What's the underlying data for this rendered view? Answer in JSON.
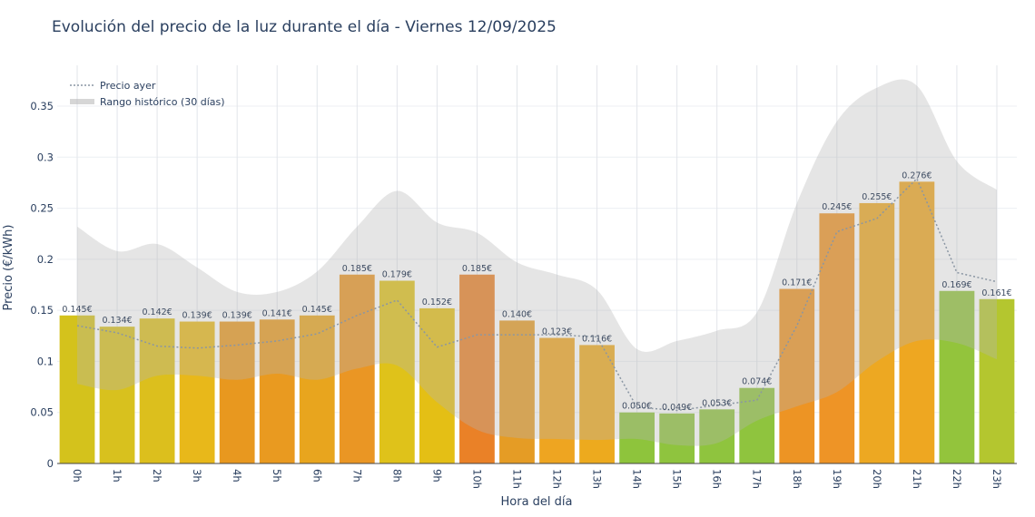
{
  "chart_data": {
    "type": "bar",
    "title": "Evolución del precio de la luz durante el día - Viernes 12/09/2025",
    "xlabel": "Hora del día",
    "ylabel": "Precio (€/kWh)",
    "ylim": [
      0,
      0.39
    ],
    "yticks": [
      0,
      0.05,
      0.1,
      0.15,
      0.2,
      0.25,
      0.3,
      0.35
    ],
    "ytick_labels": [
      "0",
      "0.05",
      "0.1",
      "0.15",
      "0.2",
      "0.25",
      "0.3",
      "0.35"
    ],
    "grid": true,
    "legend_position": "top-left",
    "categories": [
      "0h",
      "1h",
      "2h",
      "3h",
      "4h",
      "5h",
      "6h",
      "7h",
      "8h",
      "9h",
      "10h",
      "11h",
      "12h",
      "13h",
      "14h",
      "15h",
      "16h",
      "17h",
      "18h",
      "19h",
      "20h",
      "21h",
      "22h",
      "23h"
    ],
    "series": [
      {
        "kind": "bar",
        "values": [
          0.145,
          0.134,
          0.142,
          0.139,
          0.139,
          0.141,
          0.145,
          0.185,
          0.179,
          0.152,
          0.185,
          0.14,
          0.123,
          0.116,
          0.05,
          0.049,
          0.053,
          0.074,
          0.171,
          0.245,
          0.255,
          0.276,
          0.169,
          0.161
        ],
        "labels": [
          "0.145€",
          "0.134€",
          "0.142€",
          "0.139€",
          "0.139€",
          "0.141€",
          "0.145€",
          "0.185€",
          "0.179€",
          "0.152€",
          "0.185€",
          "0.140€",
          "0.123€",
          "0.116€",
          "0.050€",
          "0.049€",
          "0.053€",
          "0.074€",
          "0.171€",
          "0.245€",
          "0.255€",
          "0.276€",
          "0.169€",
          "0.161€"
        ],
        "colors": [
          "#d4c21c",
          "#d8c11e",
          "#dcbf1d",
          "#e8b81a",
          "#e8981f",
          "#e99a20",
          "#e8a51e",
          "#ea9624",
          "#dfc21a",
          "#e4bf15",
          "#ea8127",
          "#e59c25",
          "#eea521",
          "#edaa1e",
          "#8ec43c",
          "#8fc43e",
          "#8fc43e",
          "#8fc43e",
          "#ed9424",
          "#ee9426",
          "#eda822",
          "#eea721",
          "#93c43c",
          "#b4c62f"
        ]
      },
      {
        "kind": "line",
        "name": "Precio ayer",
        "style": "dotted",
        "color": "#8a96a3",
        "values": [
          0.135,
          0.128,
          0.115,
          0.113,
          0.116,
          0.12,
          0.127,
          0.145,
          0.16,
          0.114,
          0.126,
          0.126,
          0.126,
          0.124,
          0.055,
          0.052,
          0.057,
          0.062,
          0.135,
          0.227,
          0.24,
          0.279,
          0.187,
          0.178
        ]
      },
      {
        "kind": "band",
        "name": "Rango histórico (30 días)",
        "color": "rgba(180,180,180,0.35)",
        "upper": [
          0.232,
          0.208,
          0.215,
          0.192,
          0.168,
          0.168,
          0.188,
          0.232,
          0.267,
          0.236,
          0.226,
          0.197,
          0.185,
          0.17,
          0.112,
          0.12,
          0.13,
          0.148,
          0.255,
          0.335,
          0.368,
          0.37,
          0.296,
          0.268
        ],
        "lower": [
          0.078,
          0.072,
          0.086,
          0.086,
          0.082,
          0.088,
          0.082,
          0.093,
          0.096,
          0.06,
          0.033,
          0.025,
          0.024,
          0.023,
          0.024,
          0.018,
          0.02,
          0.042,
          0.056,
          0.07,
          0.1,
          0.12,
          0.118,
          0.102
        ]
      }
    ]
  }
}
